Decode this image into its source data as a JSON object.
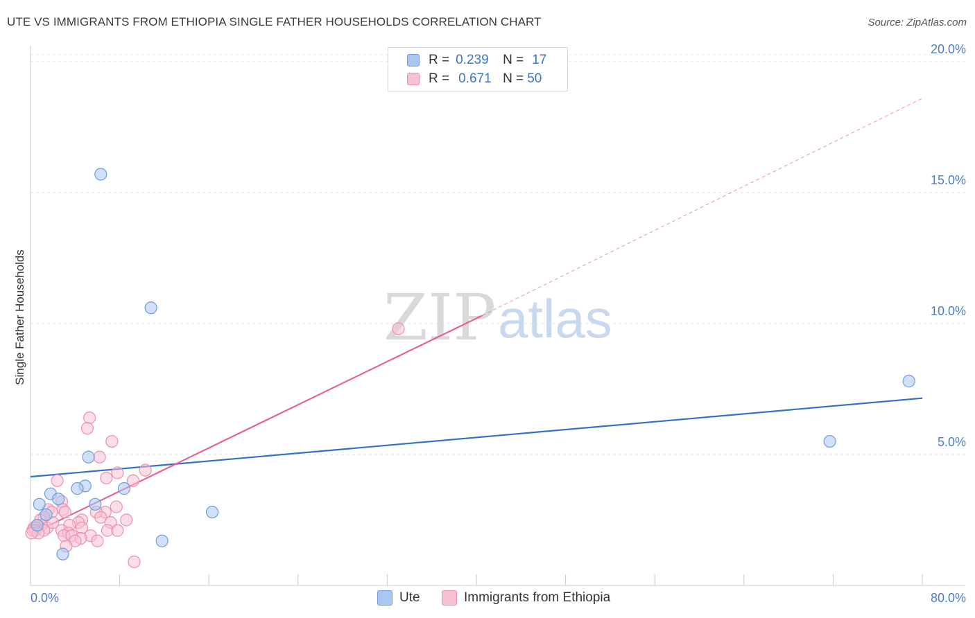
{
  "title": "UTE VS IMMIGRANTS FROM ETHIOPIA SINGLE FATHER HOUSEHOLDS CORRELATION CHART",
  "source": "Source: ZipAtlas.com",
  "watermark": {
    "part1": "ZIP",
    "part2": "atlas"
  },
  "legend": {
    "r_label": "R =",
    "n_label": "N =",
    "rows": [
      {
        "r": "0.239",
        "n": "17",
        "color": "#a9c7f0",
        "border": "#6d9de0"
      },
      {
        "r": "0.671",
        "n": "50",
        "color": "#f8c1d2",
        "border": "#ec8fae"
      }
    ]
  },
  "bottom_legend": {
    "ute": "Ute",
    "ethiopia": "Immigrants from Ethiopia"
  },
  "chart_data": {
    "type": "scatter",
    "xlabel": "",
    "ylabel": "Single Father Households",
    "xlim": [
      0,
      80
    ],
    "ylim": [
      0,
      20.5
    ],
    "x_tick_labels": [
      "0.0%",
      "80.0%"
    ],
    "y_ticks": [
      5,
      10,
      15,
      20
    ],
    "y_tick_labels": [
      "5.0%",
      "10.0%",
      "15.0%",
      "20.0%"
    ],
    "grid": true,
    "series": [
      {
        "name": "Ute",
        "color": "#a9c7f0",
        "stroke": "#6d9de0",
        "line_color": "#3370cc",
        "trend": {
          "x": [
            0,
            80
          ],
          "y": [
            4.15,
            7.15
          ]
        },
        "points": [
          [
            6.3,
            15.7
          ],
          [
            10.8,
            10.6
          ],
          [
            78.8,
            7.8
          ],
          [
            71.7,
            5.5
          ],
          [
            5.2,
            4.9
          ],
          [
            4.9,
            3.8
          ],
          [
            8.4,
            3.7
          ],
          [
            4.2,
            3.7
          ],
          [
            1.8,
            3.5
          ],
          [
            2.5,
            3.3
          ],
          [
            0.8,
            3.1
          ],
          [
            5.8,
            3.1
          ],
          [
            16.3,
            2.8
          ],
          [
            1.4,
            2.7
          ],
          [
            0.6,
            2.3
          ],
          [
            11.8,
            1.7
          ],
          [
            2.9,
            1.2
          ]
        ]
      },
      {
        "name": "Immigrants from Ethiopia",
        "color": "#f8c1d2",
        "stroke": "#ec8fae",
        "line_color": "#e8638e",
        "trend": {
          "x": [
            0,
            40.5
          ],
          "y": [
            1.95,
            10.3
          ]
        },
        "trend_dashed": {
          "x": [
            40.5,
            80
          ],
          "y": [
            10.3,
            18.6
          ]
        },
        "points": [
          [
            33.0,
            9.8
          ],
          [
            5.3,
            6.4
          ],
          [
            5.1,
            6.0
          ],
          [
            7.3,
            5.5
          ],
          [
            6.2,
            4.9
          ],
          [
            10.3,
            4.4
          ],
          [
            7.8,
            4.3
          ],
          [
            6.8,
            4.1
          ],
          [
            9.2,
            4.0
          ],
          [
            2.4,
            4.0
          ],
          [
            2.8,
            3.2
          ],
          [
            7.7,
            3.0
          ],
          [
            1.6,
            2.9
          ],
          [
            2.9,
            2.9
          ],
          [
            3.1,
            2.8
          ],
          [
            1.9,
            2.8
          ],
          [
            6.7,
            2.8
          ],
          [
            5.9,
            2.8
          ],
          [
            6.3,
            2.6
          ],
          [
            1.2,
            2.6
          ],
          [
            8.6,
            2.5
          ],
          [
            4.6,
            2.5
          ],
          [
            0.9,
            2.5
          ],
          [
            7.2,
            2.4
          ],
          [
            4.3,
            2.4
          ],
          [
            1.0,
            2.3
          ],
          [
            3.5,
            2.3
          ],
          [
            0.6,
            2.3
          ],
          [
            0.3,
            2.2
          ],
          [
            0.5,
            2.2
          ],
          [
            4.6,
            2.2
          ],
          [
            1.5,
            2.2
          ],
          [
            0.4,
            2.1
          ],
          [
            2.8,
            2.1
          ],
          [
            0.2,
            2.1
          ],
          [
            1.2,
            2.1
          ],
          [
            6.9,
            2.1
          ],
          [
            7.8,
            2.1
          ],
          [
            3.4,
            2.0
          ],
          [
            0.7,
            2.0
          ],
          [
            0.1,
            2.0
          ],
          [
            5.4,
            1.9
          ],
          [
            3.0,
            1.9
          ],
          [
            3.7,
            1.9
          ],
          [
            4.5,
            1.8
          ],
          [
            4.0,
            1.7
          ],
          [
            6.0,
            1.7
          ],
          [
            3.2,
            1.5
          ],
          [
            9.3,
            0.9
          ],
          [
            2.0,
            2.4
          ]
        ]
      }
    ]
  }
}
